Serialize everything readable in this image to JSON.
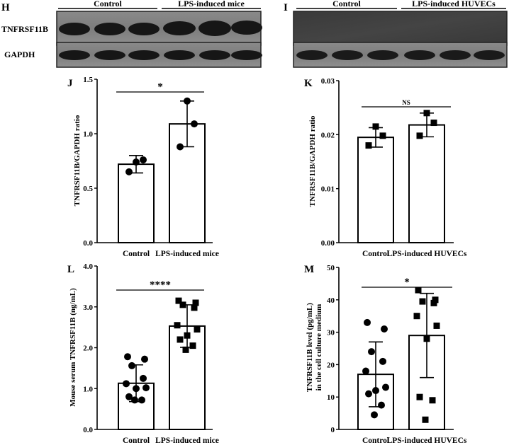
{
  "panels": {
    "H": {
      "label": "H",
      "group_labels": [
        "Control",
        "LPS-induced mice"
      ],
      "blot_rows": [
        "TNFRSF11B",
        "GAPDH"
      ]
    },
    "I": {
      "label": "I",
      "group_labels": [
        "Control",
        "LPS-induced HUVECs"
      ],
      "blot_rows": [
        "",
        ""
      ]
    }
  },
  "chart_data": [
    {
      "panel": "J",
      "type": "bar",
      "categories": [
        "Control",
        "LPS-induced mice"
      ],
      "values": [
        0.72,
        1.09
      ],
      "errors": [
        0.08,
        0.21
      ],
      "points": [
        [
          0.65,
          0.76,
          0.74
        ],
        [
          0.88,
          1.09,
          1.3
        ]
      ],
      "marker": "circle",
      "ylabel": "TNFRSF11B/GAPDH ratio",
      "ylim": [
        0,
        1.5
      ],
      "yticks": [
        "0.0",
        "0.5",
        "1.0",
        "1.5"
      ],
      "significance": "*",
      "grid": false
    },
    {
      "panel": "K",
      "type": "bar",
      "categories": [
        "Control",
        "LPS-induced HUVECs"
      ],
      "values": [
        0.0195,
        0.0218
      ],
      "errors": [
        0.0018,
        0.0022
      ],
      "points": [
        [
          0.018,
          0.0198,
          0.0215
        ],
        [
          0.0198,
          0.0222,
          0.024
        ]
      ],
      "marker": "square",
      "ylabel": "TNFRSF11B/GAPDH ratio",
      "ylim": [
        0,
        0.03
      ],
      "yticks": [
        "0.00",
        "0.01",
        "0.02",
        "0.03"
      ],
      "significance": "NS",
      "grid": false
    },
    {
      "panel": "L",
      "type": "bar",
      "categories": [
        "Control",
        "LPS-induced mice"
      ],
      "values": [
        1.13,
        2.53
      ],
      "errors": [
        0.45,
        0.52
      ],
      "points": [
        [
          1.78,
          1.72,
          1.56,
          1.25,
          1.12,
          1.02,
          1.0,
          0.8,
          0.72,
          0.72
        ],
        [
          3.15,
          3.1,
          3.05,
          2.98,
          2.55,
          2.45,
          2.3,
          2.2,
          2.05,
          1.95
        ]
      ],
      "marker": [
        "circle",
        "square"
      ],
      "ylabel": "Mouse serum TNFRSF11B (ng/mL)",
      "ylim": [
        0,
        4.0
      ],
      "yticks": [
        "0.0",
        "1.0",
        "2.0",
        "3.0",
        "4.0"
      ],
      "significance": "****",
      "grid": false
    },
    {
      "panel": "M",
      "type": "bar",
      "categories": [
        "Control",
        "LPS-induced HUVECs"
      ],
      "values": [
        17,
        29
      ],
      "errors": [
        10,
        13
      ],
      "points": [
        [
          33,
          31,
          24,
          21,
          18,
          13,
          12,
          11,
          7.5,
          4.5
        ],
        [
          43,
          40,
          39.5,
          39,
          35,
          32,
          28,
          10,
          9,
          3
        ]
      ],
      "marker": [
        "circle",
        "square"
      ],
      "ylabel": "TNFRSF11B level (pg/mL) in the cell culture medium",
      "ylabel_lines": [
        "TNFRSF11B level (pg/mL)",
        "in the cell culture medium"
      ],
      "ylim": [
        0,
        50
      ],
      "yticks": [
        "0",
        "10",
        "20",
        "30",
        "40",
        "50"
      ],
      "significance": "*",
      "grid": false
    }
  ]
}
